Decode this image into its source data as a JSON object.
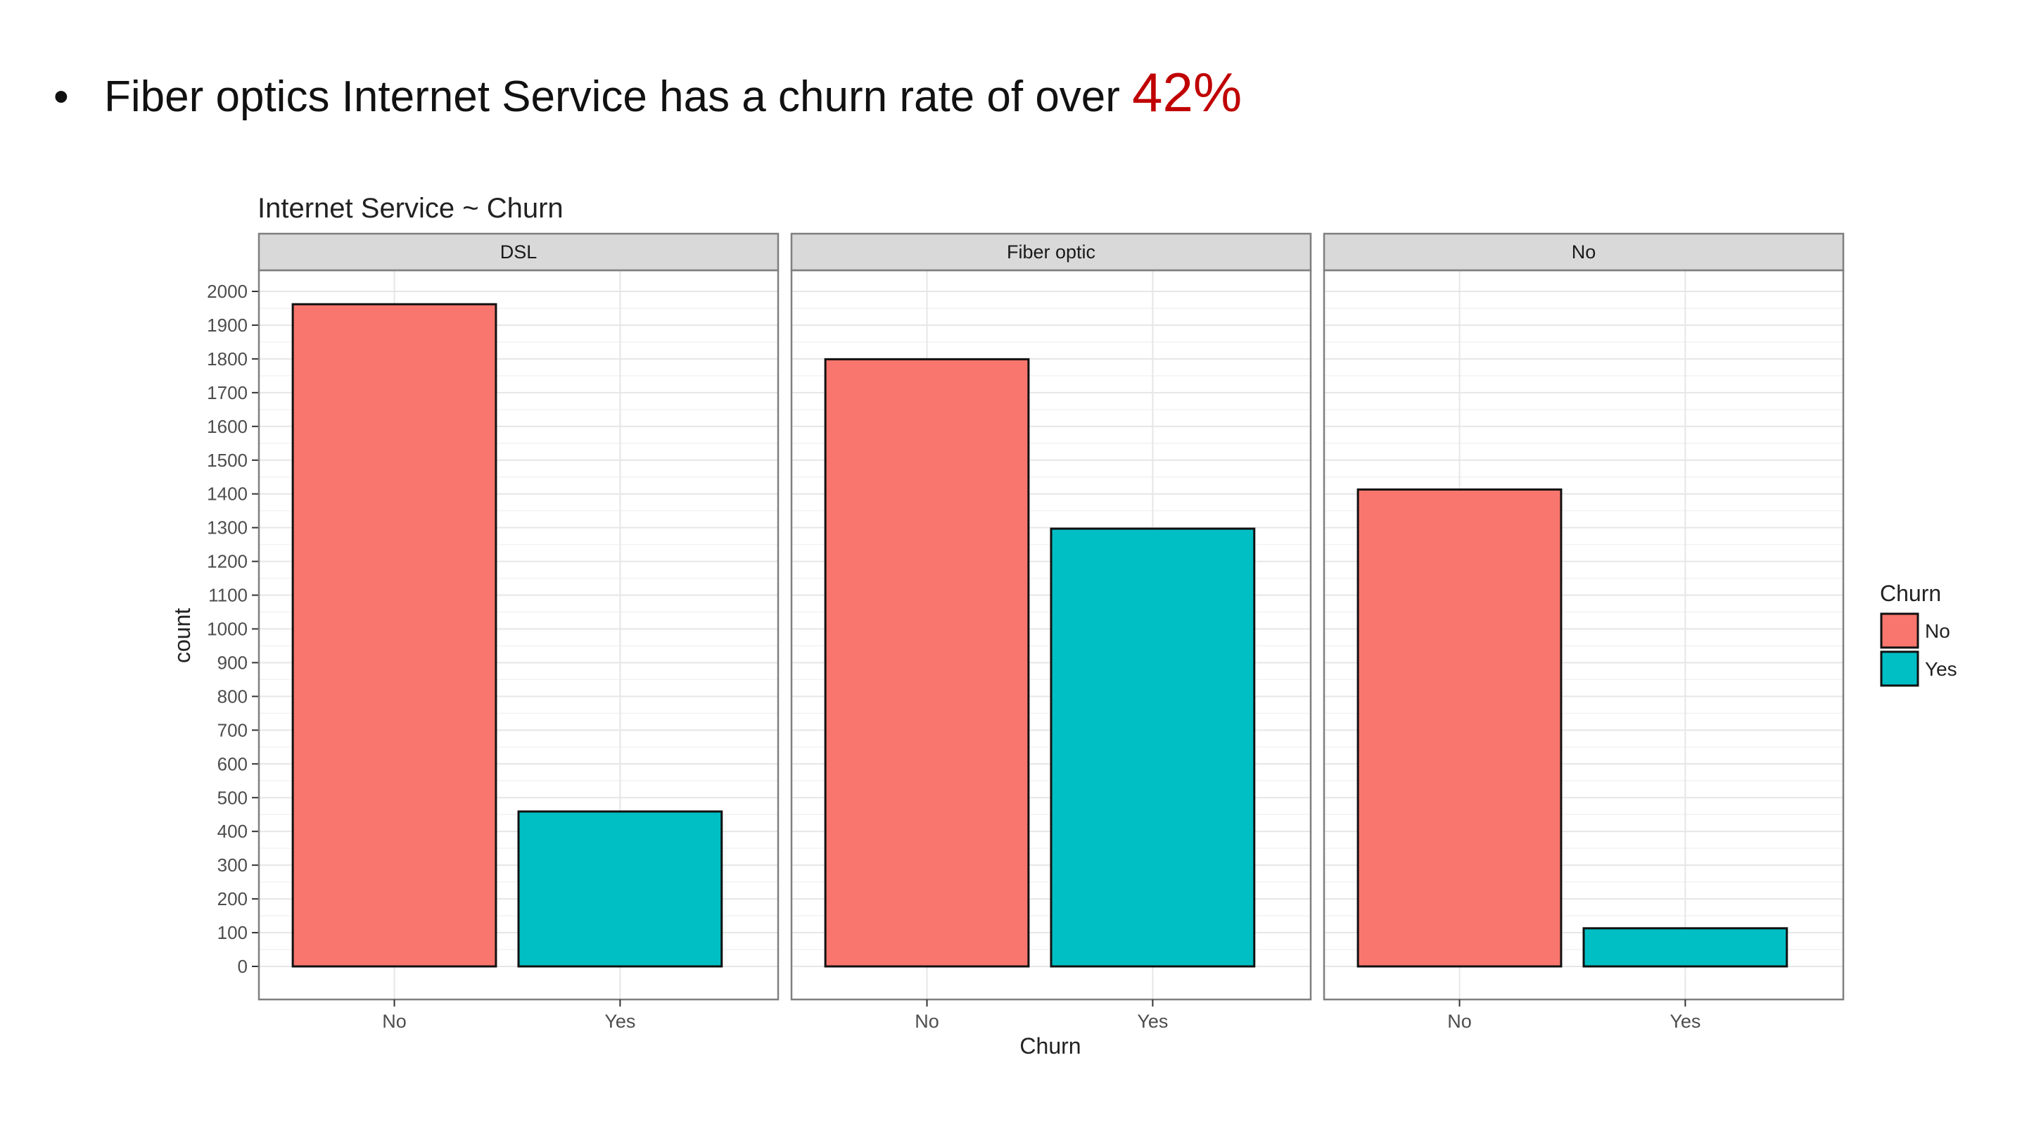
{
  "slide": {
    "bullet_symbol": "•",
    "bullet_text": "Fiber optics Internet Service has a churn rate of over ",
    "bullet_highlight": "42%",
    "highlight_color": "#c00000"
  },
  "chart_data": {
    "type": "bar",
    "title": "Internet Service ~ Churn",
    "xlabel": "Churn",
    "ylabel": "count",
    "ylim": [
      0,
      2000
    ],
    "y_ticks": [
      0,
      100,
      200,
      300,
      400,
      500,
      600,
      700,
      800,
      900,
      1000,
      1100,
      1200,
      1300,
      1400,
      1500,
      1600,
      1700,
      1800,
      1900,
      2000
    ],
    "grid": true,
    "categories": [
      "No",
      "Yes"
    ],
    "facets": [
      {
        "name": "DSL",
        "values": [
          1962,
          459
        ]
      },
      {
        "name": "Fiber optic",
        "values": [
          1799,
          1297
        ]
      },
      {
        "name": "No",
        "values": [
          1413,
          113
        ]
      }
    ],
    "legend": {
      "title": "Churn",
      "position": "right",
      "entries": [
        {
          "label": "No",
          "color": "#F8766D"
        },
        {
          "label": "Yes",
          "color": "#00BFC4"
        }
      ]
    },
    "colors": {
      "No": "#F8766D",
      "Yes": "#00BFC4",
      "strip": "#d9d9d9",
      "panel_border": "#7f7f7f"
    }
  }
}
